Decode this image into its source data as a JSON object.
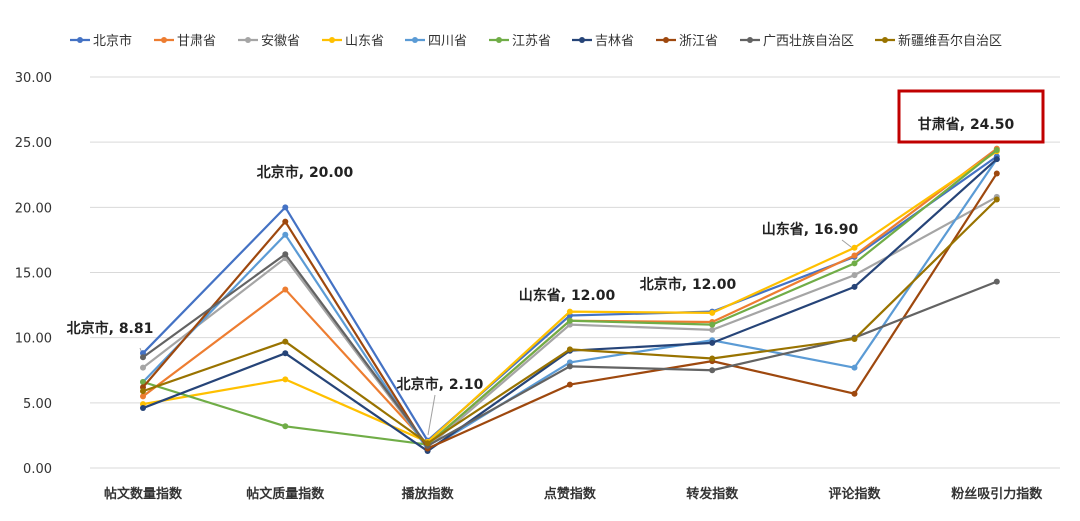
{
  "chart_data": {
    "type": "line",
    "title": "",
    "xlabel": "",
    "ylabel": "",
    "ylim": [
      0,
      30
    ],
    "yticks": [
      "0.00",
      "5.00",
      "10.00",
      "15.00",
      "20.00",
      "25.00",
      "30.00"
    ],
    "grid": "horizontal",
    "legend": "top",
    "categories": [
      "帖文数量指数",
      "帖文质量指数",
      "播放指数",
      "点赞指数",
      "转发指数",
      "评论指数",
      "粉丝吸引力指数"
    ],
    "series": [
      {
        "name": "北京市",
        "color": "#4472c4",
        "values": [
          8.81,
          20.0,
          2.1,
          11.7,
          12.0,
          16.2,
          23.9
        ]
      },
      {
        "name": "甘肃省",
        "color": "#ed7d31",
        "values": [
          5.5,
          13.7,
          1.8,
          11.3,
          11.2,
          16.3,
          24.5
        ]
      },
      {
        "name": "安徽省",
        "color": "#a5a5a5",
        "values": [
          7.7,
          16.1,
          1.6,
          11.0,
          10.6,
          14.8,
          20.8
        ]
      },
      {
        "name": "山东省",
        "color": "#ffc000",
        "values": [
          4.9,
          6.8,
          2.0,
          12.0,
          11.9,
          16.9,
          24.3
        ]
      },
      {
        "name": "四川省",
        "color": "#5b9bd5",
        "values": [
          6.6,
          17.9,
          1.4,
          8.1,
          9.8,
          7.7,
          23.7
        ]
      },
      {
        "name": "江苏省",
        "color": "#70ad47",
        "values": [
          6.6,
          3.2,
          1.8,
          11.3,
          11.0,
          15.7,
          24.4
        ]
      },
      {
        "name": "吉林省",
        "color": "#264478",
        "values": [
          4.6,
          8.8,
          1.3,
          9.0,
          9.6,
          13.9,
          23.7
        ]
      },
      {
        "name": "浙江省",
        "color": "#9e480e",
        "values": [
          6.2,
          18.9,
          1.5,
          6.4,
          8.2,
          5.7,
          22.6
        ]
      },
      {
        "name": "广西壮族自治区",
        "color": "#636363",
        "values": [
          8.5,
          16.4,
          1.7,
          7.8,
          7.5,
          10.0,
          14.3
        ]
      },
      {
        "name": "新疆维吾尔自治区",
        "color": "#997300",
        "values": [
          5.9,
          9.7,
          1.9,
          9.1,
          8.4,
          9.9,
          20.6
        ]
      }
    ],
    "annotations": [
      {
        "text": "北京市, 8.81",
        "category_index": 0,
        "value": 8.81,
        "boxed": false
      },
      {
        "text": "北京市, 20.00",
        "category_index": 1,
        "value": 20.0,
        "boxed": false
      },
      {
        "text": "北京市, 2.10",
        "category_index": 2,
        "value": 2.1,
        "boxed": false
      },
      {
        "text": "山东省, 12.00",
        "category_index": 3,
        "value": 12.0,
        "boxed": false
      },
      {
        "text": "北京市, 12.00",
        "category_index": 4,
        "value": 12.0,
        "boxed": false
      },
      {
        "text": "山东省, 16.90",
        "category_index": 5,
        "value": 16.9,
        "boxed": false
      },
      {
        "text": "甘肃省, 24.50",
        "category_index": 6,
        "value": 24.5,
        "boxed": true
      }
    ],
    "highlight_color": "#c00000"
  }
}
